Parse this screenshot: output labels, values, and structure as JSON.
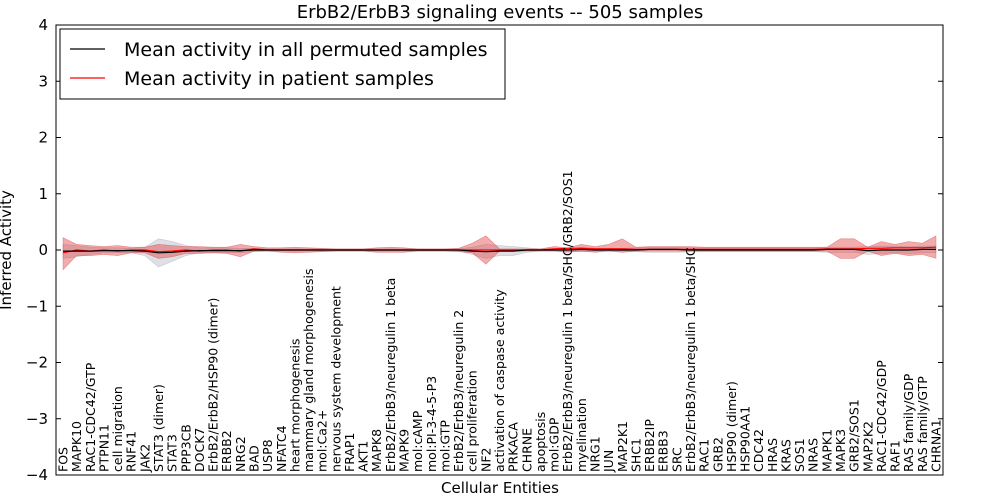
{
  "chart_data": {
    "type": "line",
    "title": "ErbB2/ErbB3 signaling events -- 505 samples",
    "xlabel": "Cellular Entities",
    "ylabel": "Inferred Activity",
    "ylim": [
      -4,
      4
    ],
    "yticks": [
      "4",
      "3",
      "2",
      "1",
      "0",
      "−1",
      "−2",
      "−3",
      "−4"
    ],
    "ytick_values": [
      4,
      3,
      2,
      1,
      0,
      -1,
      -2,
      -3,
      -4
    ],
    "grid": false,
    "legend_position": "top-left",
    "categories": [
      "FOS",
      "MAPK10",
      "RAC1-CDC42/GTP",
      "PTPN11",
      "cell migration",
      "RNF41",
      "JAK2",
      "STAT3 (dimer)",
      "STAT3",
      "PPP3CB",
      "DOCK7",
      "ErbB2/ErbB2/HSP90 (dimer)",
      "ERBB2",
      "NRG2",
      "BAD",
      "USP8",
      "NFATC4",
      "heart morphogenesis",
      "mammary gland morphogenesis",
      "mol:Ca2+",
      "nervous system development",
      "FRAP1",
      "AKT1",
      "MAPK8",
      "ErbB2/ErbB3/neuregulin 1 beta",
      "MAPK9",
      "mol:cAMP",
      "mol:PI-3-4-5-P3",
      "mol:GTP",
      "ErbB2/ErbB3/neuregulin 2",
      "cell proliferation",
      "NF2",
      "activation of caspase activity",
      "PRKACA",
      "CHRNE",
      "apoptosis",
      "mol:GDP",
      "ErbB2/ErbB3/neuregulin 1 beta/SHC/GRB2/SOS1",
      "myelination",
      "NRG1",
      "JUN",
      "MAP2K1",
      "SHC1",
      "ERBB2IP",
      "ERBB3",
      "SRC",
      "ErbB2/ErbB3/neuregulin 1 beta/SHC",
      "RAC1",
      "GRB2",
      "HSP90 (dimer)",
      "HSP90AA1",
      "CDC42",
      "HRAS",
      "KRAS",
      "SOS1",
      "NRAS",
      "MAPK1",
      "MAPK3",
      "GRB2/SOS1",
      "MAP2K2",
      "RAC1-CDC42/GDP",
      "RAF1",
      "RAS family/GDP",
      "RAS family/GTP",
      "CHRNA1"
    ],
    "series": [
      {
        "name": "Mean activity in all permuted samples",
        "color": "#000000",
        "values": [
          -0.02,
          -0.02,
          -0.02,
          -0.01,
          -0.01,
          -0.01,
          -0.02,
          -0.05,
          -0.04,
          -0.02,
          -0.01,
          -0.01,
          -0.01,
          -0.01,
          0.0,
          0.0,
          0.0,
          0.0,
          0.0,
          0.0,
          0.0,
          0.0,
          0.0,
          0.0,
          0.0,
          0.0,
          0.0,
          0.0,
          0.0,
          0.0,
          -0.02,
          -0.03,
          -0.02,
          -0.02,
          0.0,
          0.0,
          0.0,
          0.0,
          0.01,
          0.0,
          0.0,
          0.0,
          0.0,
          0.01,
          0.01,
          0.01,
          0.0,
          0.0,
          0.0,
          0.0,
          0.0,
          0.0,
          0.0,
          0.0,
          0.0,
          0.0,
          0.01,
          0.01,
          0.01,
          -0.01,
          0.0,
          0.0,
          0.0,
          0.01,
          0.01
        ],
        "band_lower": [
          -0.15,
          -0.12,
          -0.08,
          -0.05,
          -0.05,
          -0.05,
          -0.1,
          -0.3,
          -0.2,
          -0.1,
          -0.05,
          -0.05,
          -0.05,
          -0.05,
          -0.03,
          -0.02,
          -0.02,
          -0.02,
          -0.02,
          -0.02,
          -0.02,
          -0.02,
          -0.02,
          -0.02,
          -0.02,
          -0.02,
          -0.02,
          -0.02,
          -0.02,
          -0.02,
          -0.08,
          -0.15,
          -0.1,
          -0.1,
          -0.04,
          -0.02,
          -0.02,
          -0.02,
          -0.03,
          -0.02,
          -0.02,
          -0.02,
          -0.03,
          -0.04,
          -0.04,
          -0.04,
          -0.03,
          -0.03,
          -0.03,
          -0.03,
          -0.03,
          -0.03,
          -0.03,
          -0.03,
          -0.03,
          -0.03,
          -0.04,
          -0.04,
          -0.04,
          -0.08,
          -0.06,
          -0.05,
          -0.06,
          -0.05,
          -0.05
        ],
        "band_upper": [
          0.1,
          0.08,
          0.05,
          0.04,
          0.04,
          0.03,
          0.05,
          0.2,
          0.15,
          0.08,
          0.04,
          0.04,
          0.04,
          0.03,
          0.03,
          0.02,
          0.02,
          0.02,
          0.02,
          0.02,
          0.02,
          0.02,
          0.02,
          0.02,
          0.02,
          0.02,
          0.02,
          0.02,
          0.02,
          0.02,
          0.05,
          0.1,
          0.08,
          0.06,
          0.04,
          0.02,
          0.02,
          0.02,
          0.05,
          0.03,
          0.03,
          0.03,
          0.04,
          0.05,
          0.05,
          0.05,
          0.04,
          0.04,
          0.04,
          0.04,
          0.04,
          0.04,
          0.04,
          0.04,
          0.04,
          0.04,
          0.05,
          0.05,
          0.05,
          0.06,
          0.07,
          0.07,
          0.06,
          0.07,
          0.07
        ]
      },
      {
        "name": "Mean activity in patient samples",
        "color": "#ff0000",
        "values": [
          -0.05,
          0.0,
          -0.02,
          0.0,
          -0.02,
          0.0,
          0.0,
          -0.03,
          -0.02,
          0.0,
          -0.02,
          0.0,
          0.0,
          -0.02,
          0.02,
          0.0,
          0.0,
          0.0,
          0.0,
          0.0,
          0.0,
          0.0,
          0.0,
          0.0,
          0.0,
          0.0,
          0.0,
          0.0,
          0.0,
          0.0,
          0.0,
          0.0,
          0.0,
          0.0,
          0.0,
          0.0,
          0.02,
          0.03,
          0.03,
          0.02,
          0.02,
          0.02,
          0.01,
          0.01,
          0.01,
          0.01,
          0.01,
          0.01,
          0.01,
          0.01,
          0.01,
          0.01,
          0.01,
          0.01,
          0.01,
          0.01,
          0.02,
          0.02,
          0.02,
          0.03,
          0.03,
          0.04,
          0.04,
          0.04,
          0.05
        ],
        "band_lower": [
          -0.35,
          -0.1,
          -0.1,
          -0.08,
          -0.1,
          -0.05,
          -0.05,
          -0.15,
          -0.12,
          -0.06,
          -0.06,
          -0.05,
          -0.06,
          -0.12,
          -0.02,
          -0.02,
          -0.04,
          -0.05,
          -0.04,
          -0.03,
          -0.02,
          -0.02,
          -0.02,
          -0.04,
          -0.04,
          -0.04,
          -0.02,
          -0.02,
          -0.02,
          -0.03,
          -0.05,
          -0.25,
          -0.02,
          -0.02,
          -0.02,
          -0.02,
          -0.02,
          -0.04,
          -0.02,
          -0.04,
          -0.02,
          -0.04,
          -0.02,
          -0.02,
          -0.02,
          -0.02,
          -0.02,
          -0.02,
          -0.02,
          -0.02,
          -0.02,
          -0.02,
          -0.02,
          -0.02,
          -0.02,
          -0.02,
          -0.02,
          -0.15,
          -0.15,
          -0.02,
          -0.1,
          -0.06,
          -0.1,
          -0.08,
          -0.15
        ],
        "band_upper": [
          0.22,
          0.1,
          0.08,
          0.06,
          0.08,
          0.05,
          0.05,
          0.1,
          0.08,
          0.06,
          0.06,
          0.05,
          0.05,
          0.1,
          0.06,
          0.04,
          0.04,
          0.05,
          0.04,
          0.03,
          0.02,
          0.02,
          0.02,
          0.04,
          0.05,
          0.04,
          0.02,
          0.02,
          0.02,
          0.03,
          0.12,
          0.25,
          0.02,
          0.02,
          0.02,
          0.02,
          0.06,
          0.04,
          0.1,
          0.06,
          0.1,
          0.2,
          0.05,
          0.06,
          0.06,
          0.06,
          0.06,
          0.05,
          0.05,
          0.05,
          0.05,
          0.05,
          0.05,
          0.05,
          0.05,
          0.05,
          0.05,
          0.2,
          0.2,
          0.05,
          0.15,
          0.1,
          0.15,
          0.12,
          0.25
        ]
      }
    ]
  }
}
